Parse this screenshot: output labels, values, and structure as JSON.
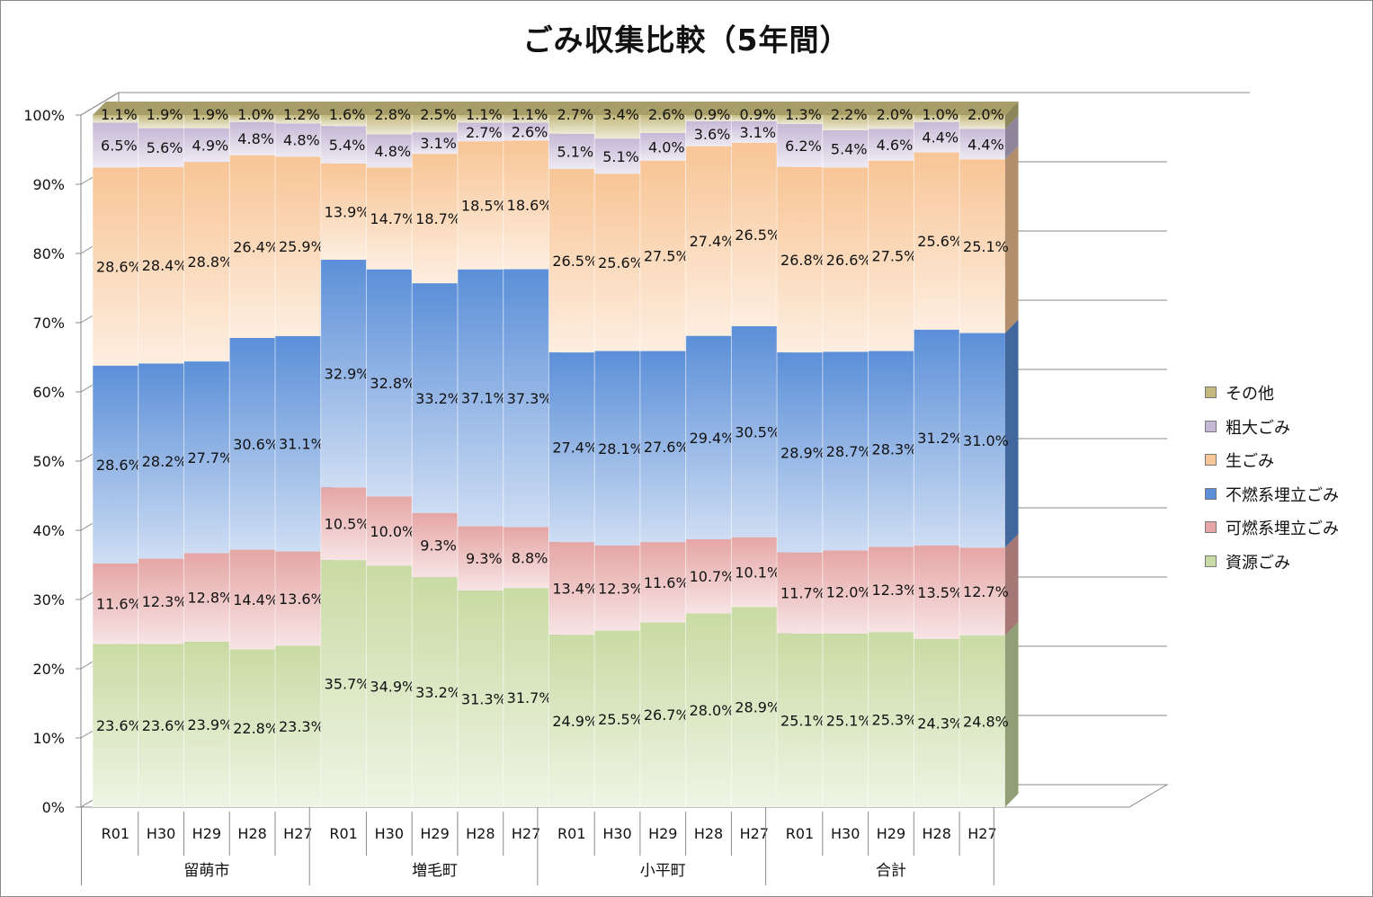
{
  "title": "ごみ収集比較（5年間）",
  "colors": {
    "資源ごみ": "#c9dba4",
    "可燃系埋立ごみ": "#e5a6a5",
    "不燃系埋立ごみ": "#5b8fd8",
    "生ごみ": "#f8c596",
    "粗大ごみ": "#c5b9d6",
    "その他": "#c3b97c"
  },
  "chart_data": {
    "type": "bar",
    "stacked": "percent",
    "title": "ごみ収集比較（5年間）",
    "ylim": [
      0,
      100
    ],
    "yticks": [
      "0%",
      "10%",
      "20%",
      "30%",
      "40%",
      "50%",
      "60%",
      "70%",
      "80%",
      "90%",
      "100%"
    ],
    "grid": true,
    "legend_position": "right",
    "series_order": [
      "資源ごみ",
      "可燃系埋立ごみ",
      "不燃系埋立ごみ",
      "生ごみ",
      "粗大ごみ",
      "その他"
    ],
    "legend_order": [
      "その他",
      "粗大ごみ",
      "生ごみ",
      "不燃系埋立ごみ",
      "可燃系埋立ごみ",
      "資源ごみ"
    ],
    "groups": [
      {
        "name": "留萌市",
        "categories": [
          "R01",
          "H30",
          "H29",
          "H28",
          "H27"
        ],
        "series": [
          {
            "name": "資源ごみ",
            "values": [
              23.6,
              23.6,
              23.9,
              22.8,
              23.3
            ],
            "labels": [
              "23.6%",
              "23.6%",
              "23.9%",
              "22.8%",
              "23.3%"
            ]
          },
          {
            "name": "可燃系埋立ごみ",
            "values": [
              11.6,
              12.3,
              12.8,
              14.4,
              13.6
            ],
            "labels": [
              "11.6%",
              "12.3%",
              "12.8%",
              "14.4%",
              "13.6%"
            ]
          },
          {
            "name": "不燃系埋立ごみ",
            "values": [
              28.6,
              28.2,
              27.7,
              30.6,
              31.1
            ],
            "labels": [
              "28.6%",
              "28.2%",
              "27.7%",
              "30.6%",
              "31.1%"
            ]
          },
          {
            "name": "生ごみ",
            "values": [
              28.6,
              28.4,
              28.8,
              26.4,
              25.9
            ],
            "labels": [
              "28.6%",
              "28.4%",
              "28.8%",
              "26.4%",
              "25.9%"
            ]
          },
          {
            "name": "粗大ごみ",
            "values": [
              6.5,
              5.6,
              4.9,
              4.8,
              4.8
            ],
            "labels": [
              "6.5%",
              "5.6%",
              "4.9%",
              "4.8%",
              "4.8%"
            ]
          },
          {
            "name": "その他",
            "values": [
              1.1,
              1.9,
              1.9,
              1.0,
              1.2
            ],
            "labels": [
              "1.1%",
              "1.9%",
              "1.9%",
              "1.0%",
              "1.2%"
            ]
          }
        ]
      },
      {
        "name": "増毛町",
        "categories": [
          "R01",
          "H30",
          "H29",
          "H28",
          "H27"
        ],
        "series": [
          {
            "name": "資源ごみ",
            "values": [
              35.7,
              34.9,
              33.2,
              31.3,
              31.7
            ],
            "labels": [
              "35.7%",
              "34.9%",
              "33.2%",
              "31.3%",
              "31.7%"
            ]
          },
          {
            "name": "可燃系埋立ごみ",
            "values": [
              10.5,
              10.0,
              9.3,
              9.3,
              8.8
            ],
            "labels": [
              "10.5%",
              "10.0%",
              "9.3%",
              "9.3%",
              "8.8%"
            ]
          },
          {
            "name": "不燃系埋立ごみ",
            "values": [
              32.9,
              32.8,
              33.2,
              37.1,
              37.3
            ],
            "labels": [
              "32.9%",
              "32.8%",
              "33.2%",
              "37.1%",
              "37.3%"
            ]
          },
          {
            "name": "生ごみ",
            "values": [
              13.9,
              14.7,
              18.7,
              18.5,
              18.6
            ],
            "labels": [
              "13.9%",
              "14.7%",
              "18.7%",
              "18.5%",
              "18.6%"
            ]
          },
          {
            "name": "粗大ごみ",
            "values": [
              5.4,
              4.8,
              3.1,
              2.7,
              2.6
            ],
            "labels": [
              "5.4%",
              "4.8%",
              "3.1%",
              "2.7%",
              "2.6%"
            ]
          },
          {
            "name": "その他",
            "values": [
              1.6,
              2.8,
              2.5,
              1.1,
              1.1
            ],
            "labels": [
              "1.6%",
              "2.8%",
              "2.5%",
              "1.1%",
              "1.1%"
            ]
          }
        ]
      },
      {
        "name": "小平町",
        "categories": [
          "R01",
          "H30",
          "H29",
          "H28",
          "H27"
        ],
        "series": [
          {
            "name": "資源ごみ",
            "values": [
              24.9,
              25.5,
              26.7,
              28.0,
              28.9
            ],
            "labels": [
              "24.9%",
              "25.5%",
              "26.7%",
              "28.0%",
              "28.9%"
            ]
          },
          {
            "name": "可燃系埋立ごみ",
            "values": [
              13.4,
              12.3,
              11.6,
              10.7,
              10.1
            ],
            "labels": [
              "13.4%",
              "12.3%",
              "11.6%",
              "10.7%",
              "10.1%"
            ]
          },
          {
            "name": "不燃系埋立ごみ",
            "values": [
              27.4,
              28.1,
              27.6,
              29.4,
              30.5
            ],
            "labels": [
              "27.4%",
              "28.1%",
              "27.6%",
              "29.4%",
              "30.5%"
            ]
          },
          {
            "name": "生ごみ",
            "values": [
              26.5,
              25.6,
              27.5,
              27.4,
              26.5
            ],
            "labels": [
              "26.5%",
              "25.6%",
              "27.5%",
              "27.4%",
              "26.5%"
            ]
          },
          {
            "name": "粗大ごみ",
            "values": [
              5.1,
              5.1,
              4.0,
              3.6,
              3.1
            ],
            "labels": [
              "5.1%",
              "5.1%",
              "4.0%",
              "3.6%",
              "3.1%"
            ]
          },
          {
            "name": "その他",
            "values": [
              2.7,
              3.4,
              2.6,
              0.9,
              0.9
            ],
            "labels": [
              "2.7%",
              "3.4%",
              "2.6%",
              "0.9%",
              "0.9%"
            ]
          }
        ]
      },
      {
        "name": "合計",
        "categories": [
          "R01",
          "H30",
          "H29",
          "H28",
          "H27"
        ],
        "series": [
          {
            "name": "資源ごみ",
            "values": [
              25.1,
              25.1,
              25.3,
              24.3,
              24.8
            ],
            "labels": [
              "25.1%",
              "25.1%",
              "25.3%",
              "24.3%",
              "24.8%"
            ]
          },
          {
            "name": "可燃系埋立ごみ",
            "values": [
              11.7,
              12.0,
              12.3,
              13.5,
              12.7
            ],
            "labels": [
              "11.7%",
              "12.0%",
              "12.3%",
              "13.5%",
              "12.7%"
            ]
          },
          {
            "name": "不燃系埋立ごみ",
            "values": [
              28.9,
              28.7,
              28.3,
              31.2,
              31.0
            ],
            "labels": [
              "28.9%",
              "28.7%",
              "28.3%",
              "31.2%",
              "31.0%"
            ]
          },
          {
            "name": "生ごみ",
            "values": [
              26.8,
              26.6,
              27.5,
              25.6,
              25.1
            ],
            "labels": [
              "26.8%",
              "26.6%",
              "27.5%",
              "25.6%",
              "25.1%"
            ]
          },
          {
            "name": "粗大ごみ",
            "values": [
              6.2,
              5.4,
              4.6,
              4.4,
              4.4
            ],
            "labels": [
              "6.2%",
              "5.4%",
              "4.6%",
              "4.4%",
              "4.4%"
            ]
          },
          {
            "name": "その他",
            "values": [
              1.3,
              2.2,
              2.0,
              1.0,
              2.0
            ],
            "labels": [
              "1.3%",
              "2.2%",
              "2.0%",
              "1.0%",
              "2.0%"
            ]
          }
        ]
      }
    ]
  }
}
